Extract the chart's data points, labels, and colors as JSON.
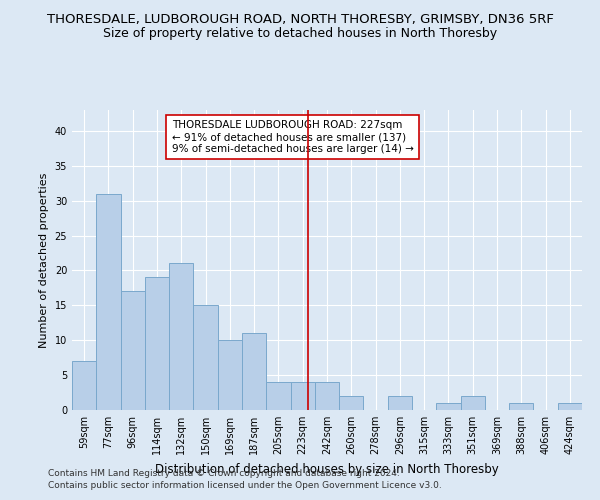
{
  "title": "THORESDALE, LUDBOROUGH ROAD, NORTH THORESBY, GRIMSBY, DN36 5RF",
  "subtitle": "Size of property relative to detached houses in North Thoresby",
  "xlabel": "Distribution of detached houses by size in North Thoresby",
  "ylabel": "Number of detached properties",
  "categories": [
    "59sqm",
    "77sqm",
    "96sqm",
    "114sqm",
    "132sqm",
    "150sqm",
    "169sqm",
    "187sqm",
    "205sqm",
    "223sqm",
    "242sqm",
    "260sqm",
    "278sqm",
    "296sqm",
    "315sqm",
    "333sqm",
    "351sqm",
    "369sqm",
    "388sqm",
    "406sqm",
    "424sqm"
  ],
  "values": [
    7,
    31,
    17,
    19,
    21,
    15,
    10,
    11,
    4,
    4,
    4,
    2,
    0,
    2,
    0,
    1,
    2,
    0,
    1,
    0,
    1
  ],
  "bar_color": "#b8cfe8",
  "bar_edge_color": "#7aa8cc",
  "vline_color": "#cc0000",
  "annotation_title": "THORESDALE LUDBOROUGH ROAD: 227sqm",
  "annotation_line1": "← 91% of detached houses are smaller (137)",
  "annotation_line2": "9% of semi-detached houses are larger (14) →",
  "annotation_box_color": "#ffffff",
  "annotation_box_edge": "#cc0000",
  "ylim": [
    0,
    43
  ],
  "yticks": [
    0,
    5,
    10,
    15,
    20,
    25,
    30,
    35,
    40
  ],
  "bg_color": "#dce8f4",
  "plot_bg_color": "#dce8f4",
  "footer1": "Contains HM Land Registry data © Crown copyright and database right 2024.",
  "footer2": "Contains public sector information licensed under the Open Government Licence v3.0.",
  "title_fontsize": 9.5,
  "subtitle_fontsize": 9,
  "xlabel_fontsize": 8.5,
  "ylabel_fontsize": 8,
  "tick_fontsize": 7,
  "annotation_fontsize": 7.5,
  "footer_fontsize": 6.5
}
